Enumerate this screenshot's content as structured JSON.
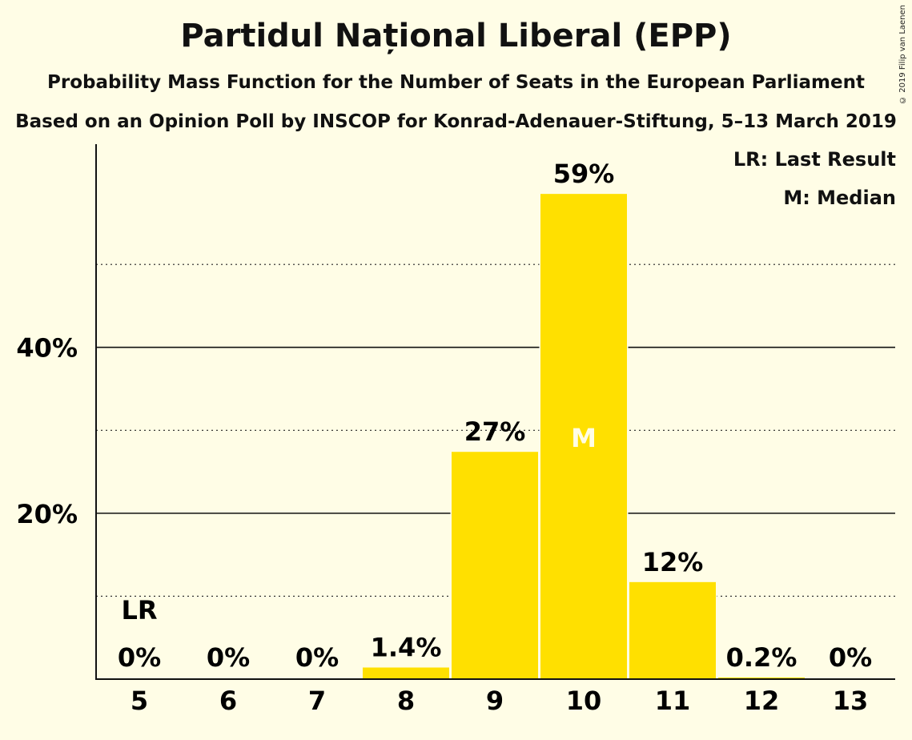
{
  "header": {
    "title": "Partidul Național Liberal (EPP)",
    "subtitle": "Probability Mass Function for the Number of Seats in the European Parliament",
    "subtitle2": "Based on an Opinion Poll by INSCOP for Konrad-Adenauer-Stiftung, 5–13 March 2019",
    "copyright": "© 2019 Filip van Laenen"
  },
  "legend": {
    "last_result": "LR: Last Result",
    "median": "M: Median"
  },
  "colors": {
    "bar": "#FFE000",
    "background": "#FFFDE6"
  },
  "chart_data": {
    "type": "bar",
    "categories": [
      "5",
      "6",
      "7",
      "8",
      "9",
      "10",
      "11",
      "12",
      "13"
    ],
    "values": [
      0,
      0,
      0,
      1.4,
      27.4,
      58.5,
      11.7,
      0.2,
      0
    ],
    "data_labels": [
      "0%",
      "0%",
      "0%",
      "1.4%",
      "27%",
      "59%",
      "12%",
      "0.2%",
      "0%"
    ],
    "ylim": [
      0,
      64.5
    ],
    "y_ticks": [
      {
        "value": 20,
        "label": "20%"
      },
      {
        "value": 40,
        "label": "40%"
      }
    ],
    "y_minor_gridlines": [
      10,
      30,
      50
    ],
    "last_result": {
      "category": "5",
      "label": "LR"
    },
    "median": {
      "category": "10",
      "label": "M"
    },
    "grid": true,
    "legend_position": "top-right"
  }
}
